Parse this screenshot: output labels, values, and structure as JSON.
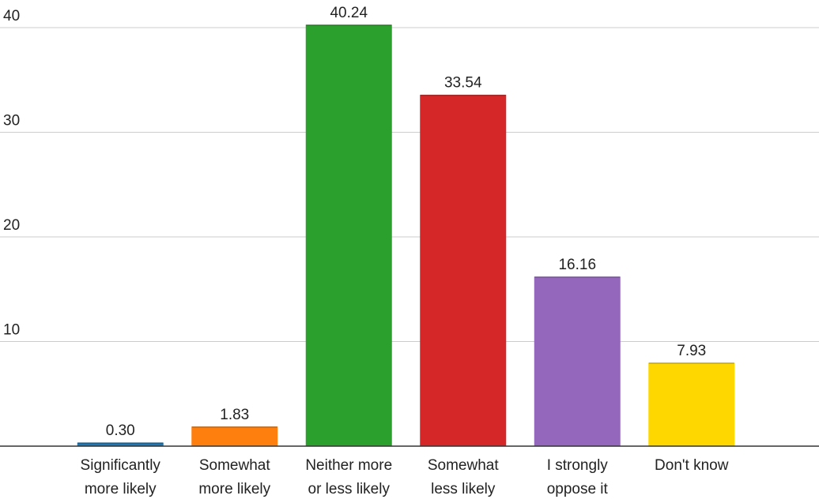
{
  "chart_data": {
    "type": "bar",
    "title": "",
    "xlabel": "",
    "ylabel": "",
    "categories": [
      [
        "Significantly",
        "more likely"
      ],
      [
        "Somewhat",
        "more likely"
      ],
      [
        "Neither more",
        "or less likely"
      ],
      [
        "Somewhat",
        "less likely"
      ],
      [
        "I strongly",
        "oppose it"
      ],
      [
        "Don't know"
      ]
    ],
    "values": [
      0.3,
      1.83,
      40.24,
      33.54,
      16.16,
      7.93
    ],
    "value_labels": [
      "0.30",
      "1.83",
      "40.24",
      "33.54",
      "16.16",
      "7.93"
    ],
    "colors": [
      "#1f77b4",
      "#ff7f0e",
      "#2ca02c",
      "#d62728",
      "#9467bd",
      "#ffd700"
    ],
    "ylim": [
      0,
      40
    ],
    "yticks": [
      10,
      20,
      30,
      40
    ],
    "ytick_labels": [
      "10",
      "20",
      "30",
      "40"
    ],
    "grid": true,
    "legend": "none"
  }
}
